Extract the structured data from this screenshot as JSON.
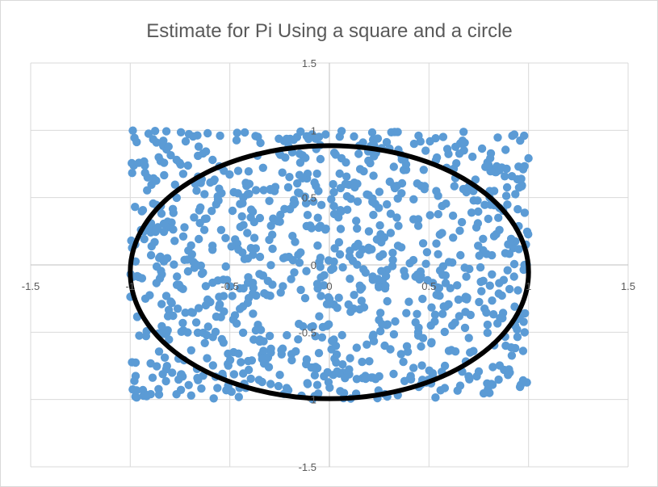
{
  "chart_data": {
    "type": "scatter",
    "title": "Estimate for Pi Using a square and a circle",
    "xlabel": "",
    "ylabel": "",
    "xlim": [
      -1.5,
      1.5
    ],
    "ylim": [
      -1.5,
      1.5
    ],
    "x_ticks": [
      "-1.5",
      "-1",
      "-0.5",
      "0",
      "0.5",
      "1",
      "1.5"
    ],
    "y_ticks": [
      "-1.5",
      "-1",
      "-0.5",
      "0",
      "0.5",
      "1",
      "1.5"
    ],
    "grid": true,
    "legend": "none",
    "point_count": 1000,
    "point_domain": {
      "x": [
        -1,
        1
      ],
      "y": [
        -1,
        1
      ]
    },
    "series_color": "#5b9bd5",
    "circle": {
      "center": [
        0,
        0
      ],
      "radius": 1,
      "color": "#000000"
    }
  }
}
